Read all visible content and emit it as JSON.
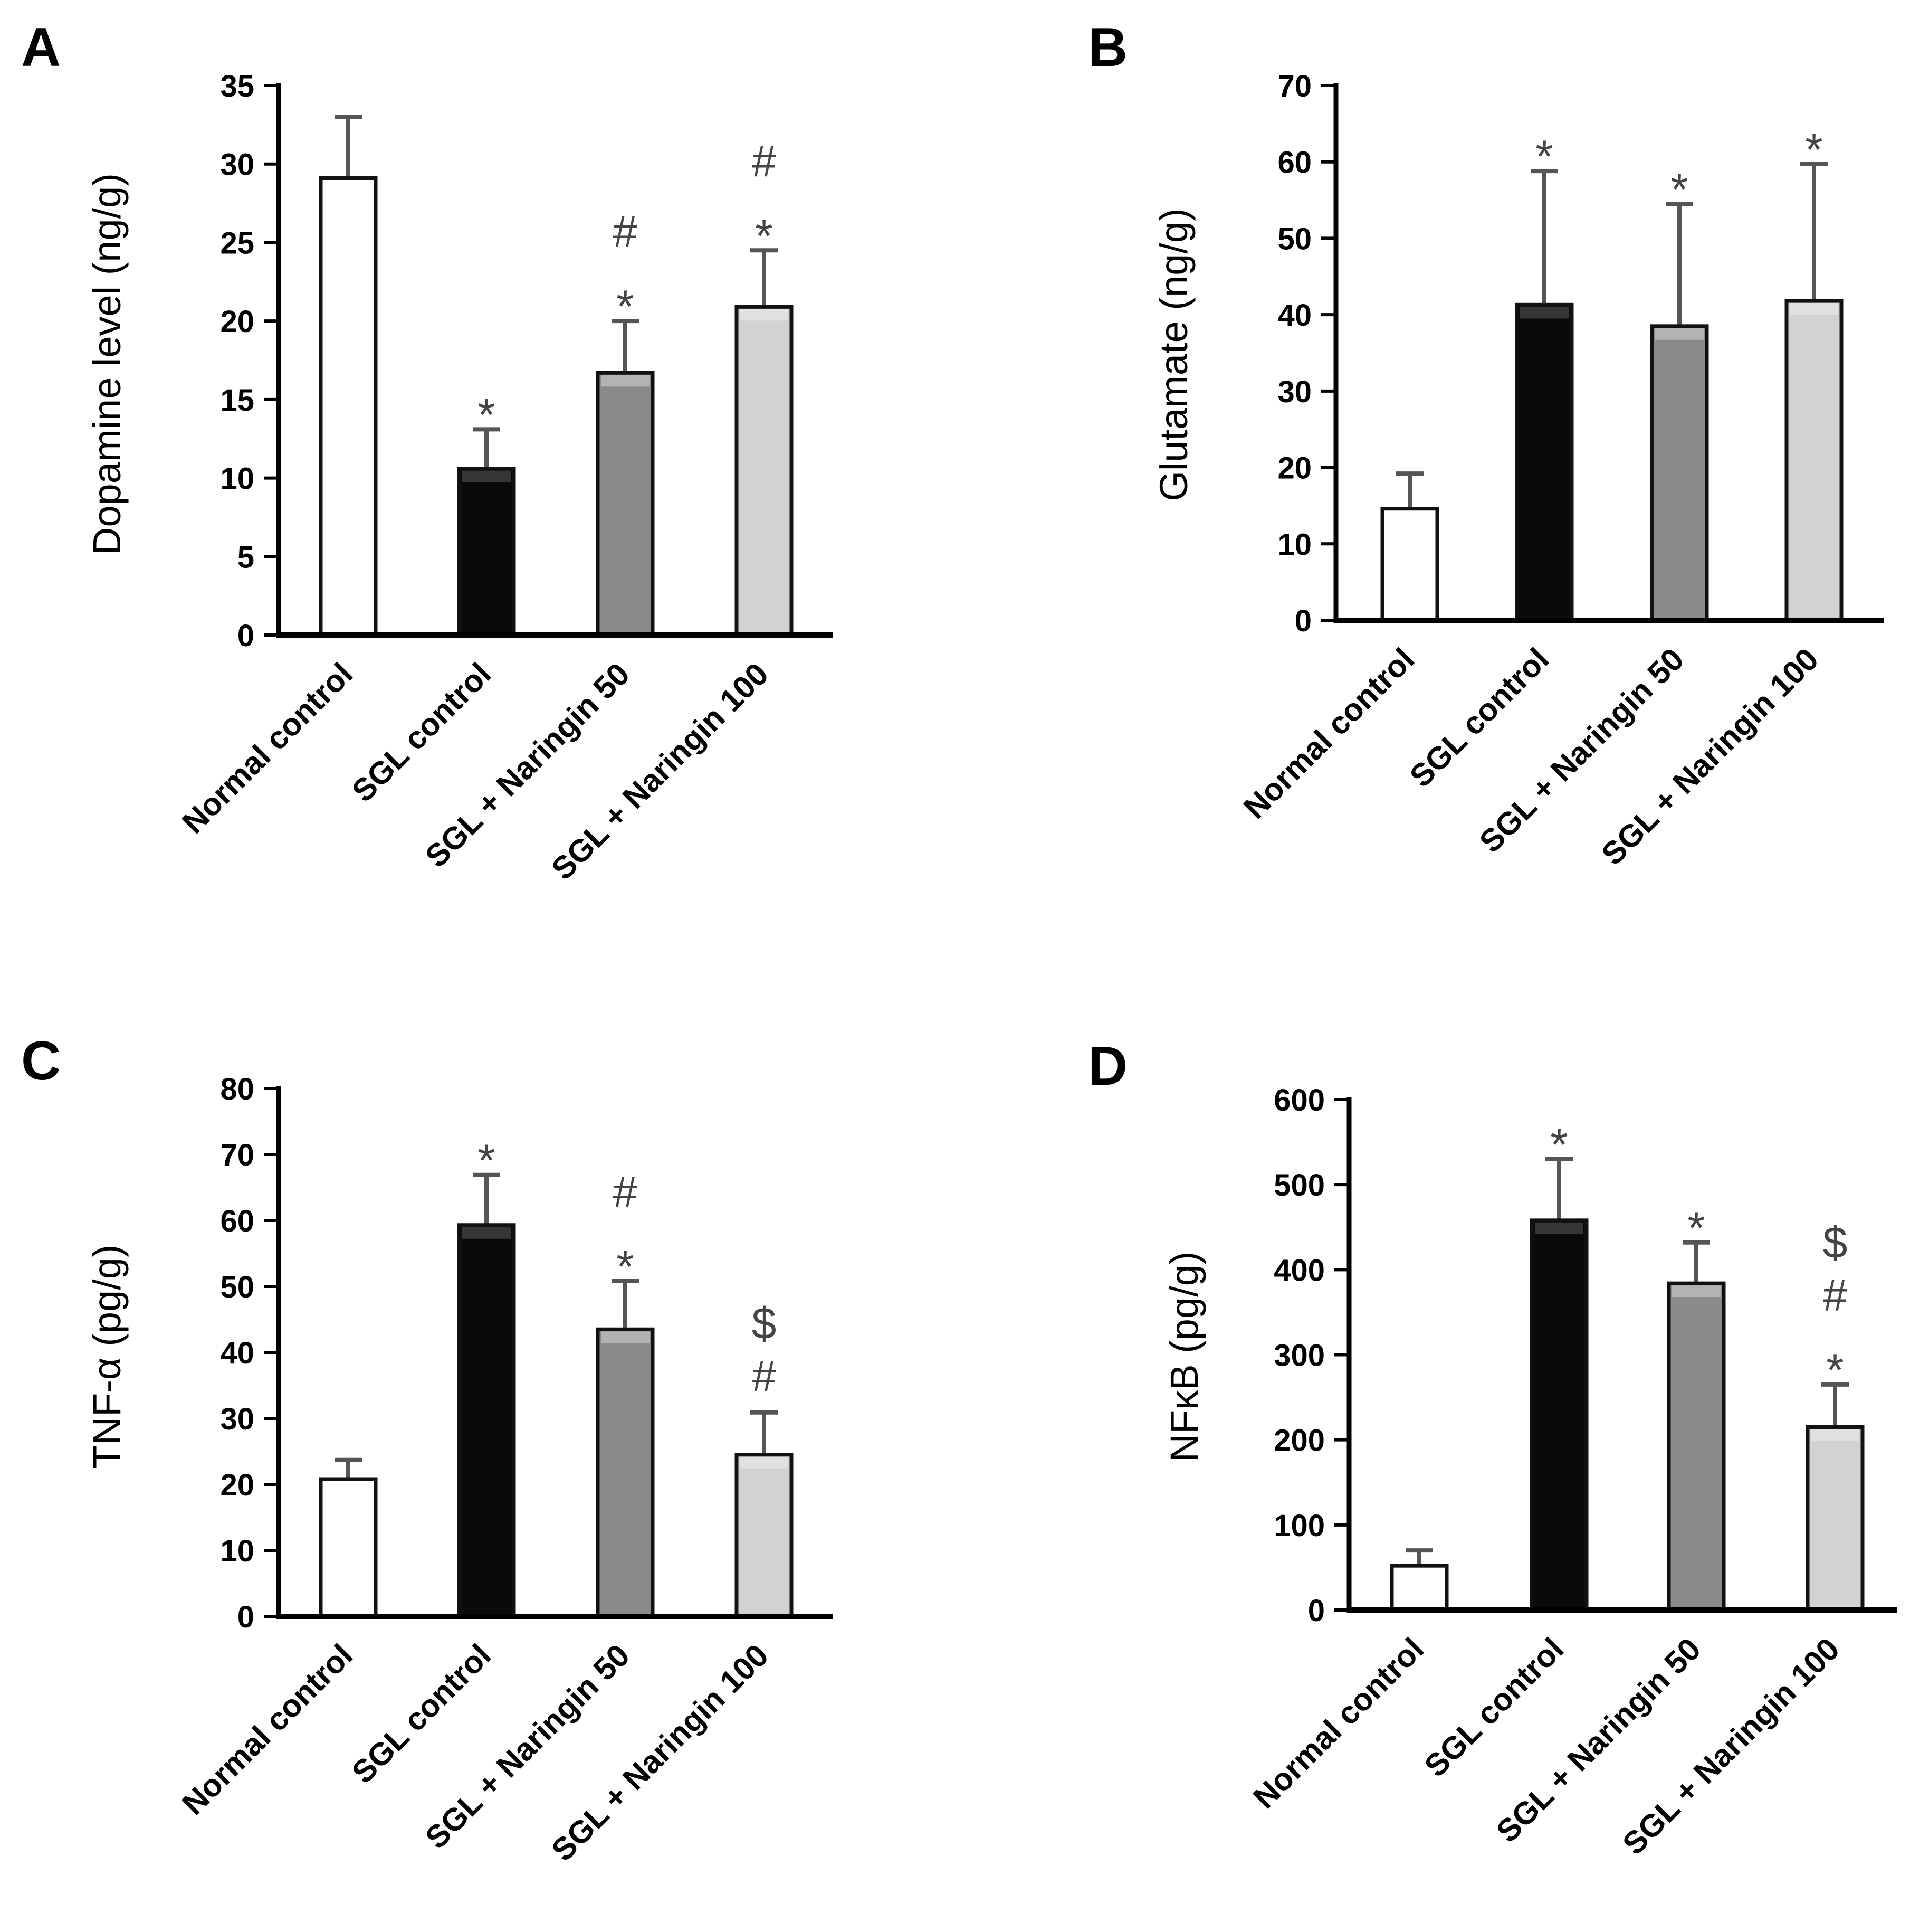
{
  "figure": {
    "colors": {
      "normal": "#ffffff",
      "sgl": "#0a0a0a",
      "nar50": "#8a8a8a",
      "nar100": "#d2d2d2",
      "axis": "#000000",
      "error": "#555555",
      "annotation": "#444444"
    }
  },
  "chart_data": [
    {
      "panel": "A",
      "type": "bar",
      "ylabel": "Dopamine level (ng/g)",
      "ylim": [
        0,
        35
      ],
      "yticks": [
        0,
        5,
        10,
        15,
        20,
        25,
        30,
        35
      ],
      "categories": [
        "Normal control",
        "SGL control",
        "SGL + Naringin 50",
        "SGL + Naringin 100"
      ],
      "values": [
        29.1,
        10.6,
        16.7,
        20.9
      ],
      "errors": [
        3.9,
        2.5,
        3.3,
        3.6
      ],
      "annotations": [
        [],
        [
          "*"
        ],
        [
          "*",
          "#"
        ],
        [
          "*",
          "#"
        ]
      ]
    },
    {
      "panel": "B",
      "type": "bar",
      "ylabel": "Glutamate (ng/g)",
      "ylim": [
        0,
        70
      ],
      "yticks": [
        0,
        10,
        20,
        30,
        40,
        50,
        60,
        70
      ],
      "categories": [
        "Normal control",
        "SGL control",
        "SGL + Naringin 50",
        "SGL + Naringin 100"
      ],
      "values": [
        14.6,
        41.3,
        38.5,
        41.8
      ],
      "errors": [
        4.6,
        17.5,
        16.0,
        17.9
      ],
      "annotations": [
        [],
        [
          "*"
        ],
        [
          "*"
        ],
        [
          "*"
        ]
      ]
    },
    {
      "panel": "C",
      "type": "bar",
      "ylabel": "TNF-α (pg/g)",
      "ylim": [
        0,
        80
      ],
      "yticks": [
        0,
        10,
        20,
        30,
        40,
        50,
        60,
        70,
        80
      ],
      "categories": [
        "Normal control",
        "SGL control",
        "SGL + Naringin 50",
        "SGL + Naringin 100"
      ],
      "values": [
        20.8,
        59.3,
        43.5,
        24.5
      ],
      "errors": [
        2.9,
        7.6,
        7.3,
        6.4
      ],
      "annotations": [
        [],
        [
          "*"
        ],
        [
          "*",
          "#"
        ],
        [
          "#",
          "$"
        ]
      ]
    },
    {
      "panel": "D",
      "type": "bar",
      "ylabel": "NFκB (pg/g)",
      "ylim": [
        0,
        600
      ],
      "yticks": [
        0,
        100,
        200,
        300,
        400,
        500,
        600
      ],
      "categories": [
        "Normal control",
        "SGL control",
        "SGL + Naringin 50",
        "SGL + Naringin 100"
      ],
      "values": [
        52,
        458,
        384,
        215
      ],
      "errors": [
        18,
        72,
        48,
        50
      ],
      "annotations": [
        [],
        [
          "*"
        ],
        [
          "*"
        ],
        [
          "*",
          "#",
          "$"
        ]
      ]
    }
  ]
}
